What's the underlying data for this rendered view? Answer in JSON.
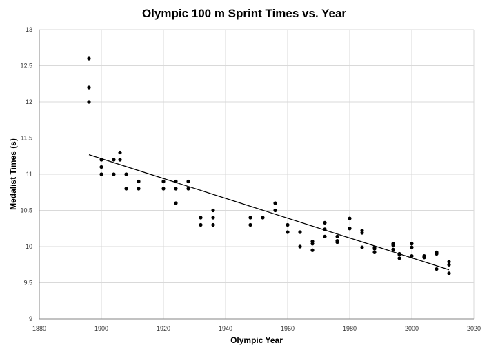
{
  "chart_data": {
    "type": "scatter",
    "title": "Olympic 100 m Sprint Times vs. Year",
    "xlabel": "Olympic  Year",
    "ylabel": "Medalist Times (s)",
    "xlim": [
      1880,
      2020
    ],
    "ylim": [
      9,
      13
    ],
    "x_ticks": [
      1880,
      1900,
      1920,
      1940,
      1960,
      1980,
      2000,
      2020
    ],
    "y_ticks": [
      9,
      9.5,
      10,
      10.5,
      11,
      11.5,
      12,
      12.5,
      13
    ],
    "grid": true,
    "legend": "none",
    "point_color": "#000000",
    "trendline": {
      "type": "linear",
      "x": [
        1896,
        2012
      ],
      "y": [
        11.27,
        9.68
      ]
    },
    "points": [
      [
        1896,
        12.6
      ],
      [
        1896,
        12.2
      ],
      [
        1896,
        12.0
      ],
      [
        1900,
        11.2
      ],
      [
        1900,
        11.1
      ],
      [
        1900,
        11.0
      ],
      [
        1904,
        11.2
      ],
      [
        1904,
        11.0
      ],
      [
        1906,
        11.3
      ],
      [
        1906,
        11.2
      ],
      [
        1908,
        11.0
      ],
      [
        1908,
        10.8
      ],
      [
        1912,
        10.9
      ],
      [
        1912,
        10.8
      ],
      [
        1920,
        10.9
      ],
      [
        1920,
        10.8
      ],
      [
        1924,
        10.9
      ],
      [
        1924,
        10.8
      ],
      [
        1924,
        10.6
      ],
      [
        1928,
        10.9
      ],
      [
        1928,
        10.8
      ],
      [
        1932,
        10.4
      ],
      [
        1932,
        10.3
      ],
      [
        1936,
        10.5
      ],
      [
        1936,
        10.4
      ],
      [
        1936,
        10.3
      ],
      [
        1948,
        10.4
      ],
      [
        1948,
        10.3
      ],
      [
        1952,
        10.4
      ],
      [
        1956,
        10.6
      ],
      [
        1956,
        10.5
      ],
      [
        1960,
        10.3
      ],
      [
        1960,
        10.2
      ],
      [
        1964,
        10.2
      ],
      [
        1964,
        10.0
      ],
      [
        1968,
        10.07
      ],
      [
        1968,
        10.04
      ],
      [
        1968,
        9.95
      ],
      [
        1972,
        10.33
      ],
      [
        1972,
        10.24
      ],
      [
        1972,
        10.14
      ],
      [
        1976,
        10.14
      ],
      [
        1976,
        10.08
      ],
      [
        1976,
        10.06
      ],
      [
        1980,
        10.39
      ],
      [
        1980,
        10.25
      ],
      [
        1984,
        10.22
      ],
      [
        1984,
        10.19
      ],
      [
        1984,
        9.99
      ],
      [
        1988,
        9.99
      ],
      [
        1988,
        9.97
      ],
      [
        1988,
        9.92
      ],
      [
        1994,
        10.04
      ],
      [
        1994,
        10.02
      ],
      [
        1994,
        9.96
      ],
      [
        1996,
        9.9
      ],
      [
        1996,
        9.89
      ],
      [
        1996,
        9.84
      ],
      [
        2000,
        10.04
      ],
      [
        2000,
        9.99
      ],
      [
        2000,
        9.87
      ],
      [
        2004,
        9.87
      ],
      [
        2004,
        9.86
      ],
      [
        2004,
        9.85
      ],
      [
        2008,
        9.92
      ],
      [
        2008,
        9.9
      ],
      [
        2008,
        9.69
      ],
      [
        2012,
        9.79
      ],
      [
        2012,
        9.75
      ],
      [
        2012,
        9.63
      ]
    ]
  }
}
